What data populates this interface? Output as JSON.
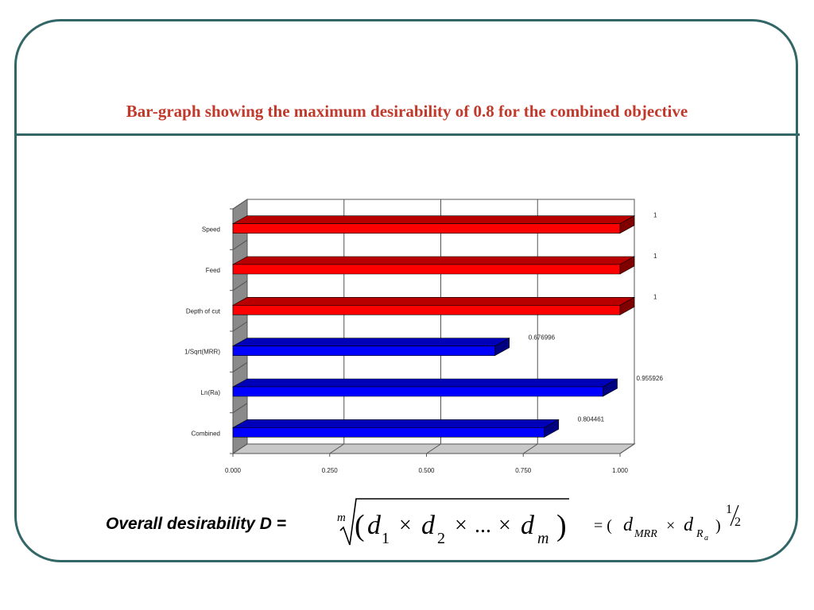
{
  "slide": {
    "title": "Bar-graph showing the maximum desirability of 0.8 for the combined objective"
  },
  "chart_data": {
    "type": "bar",
    "orientation": "horizontal",
    "categories": [
      "Speed",
      "Feed",
      "Depth of cut",
      "1/Sqrt(MRR)",
      "Ln(Ra)",
      "Combined"
    ],
    "values": [
      1,
      1,
      1,
      0.676996,
      0.955926,
      0.804461
    ],
    "value_labels": [
      "1",
      "1",
      "1",
      "0.676996",
      "0.955926",
      "0.804461"
    ],
    "bar_colors": [
      "#ff0000",
      "#ff0000",
      "#ff0000",
      "#0000ff",
      "#0000ff",
      "#0000ff"
    ],
    "xlim": [
      0,
      1
    ],
    "xticks": [
      "0.000",
      "0.250",
      "0.500",
      "0.750",
      "1.000"
    ],
    "grid": true,
    "style": "3d"
  },
  "formula": {
    "label": "Overall desirability D =",
    "root_index": "m",
    "d": "d",
    "sub1": "1",
    "sub2": "2",
    "subm": "m",
    "times": "×",
    "ellipsis": "...",
    "lparen": "(",
    "rparen": ")",
    "equals": "= (",
    "sub_mrr": "MRR",
    "sub_r": "R",
    "sub_a": "a",
    "close": ")",
    "exp_num": "1",
    "exp_den": "2"
  }
}
